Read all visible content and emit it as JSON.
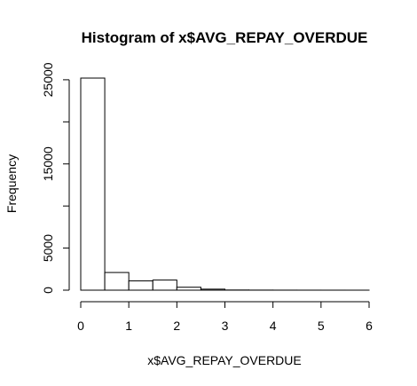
{
  "chart_data": {
    "type": "bar",
    "title": "Histogram of x$AVG_REPAY_OVERDUE",
    "xlabel": "x$AVG_REPAY_OVERDUE",
    "ylabel": "Frequency",
    "bins": [
      {
        "from": 0.0,
        "to": 0.5,
        "count": 25200
      },
      {
        "from": 0.5,
        "to": 1.0,
        "count": 2100
      },
      {
        "from": 1.0,
        "to": 1.5,
        "count": 1100
      },
      {
        "from": 1.5,
        "to": 2.0,
        "count": 1200
      },
      {
        "from": 2.0,
        "to": 2.5,
        "count": 350
      },
      {
        "from": 2.5,
        "to": 3.0,
        "count": 120
      },
      {
        "from": 3.0,
        "to": 3.5,
        "count": 20
      },
      {
        "from": 3.5,
        "to": 4.0,
        "count": 10
      },
      {
        "from": 4.0,
        "to": 4.5,
        "count": 5
      },
      {
        "from": 4.5,
        "to": 5.0,
        "count": 3
      },
      {
        "from": 5.0,
        "to": 5.5,
        "count": 2
      },
      {
        "from": 5.5,
        "to": 6.0,
        "count": 1
      }
    ],
    "xticks": [
      0,
      1,
      2,
      3,
      4,
      5,
      6
    ],
    "xtick_labels": [
      "0",
      "1",
      "2",
      "3",
      "4",
      "5",
      "6"
    ],
    "yticks": [
      0,
      5000,
      10000,
      15000,
      20000,
      25000
    ],
    "ytick_labels": [
      "0",
      "5000",
      "",
      "15000",
      "",
      "25000"
    ],
    "xlim": [
      0,
      6
    ],
    "ylim": [
      0,
      25200
    ],
    "grid": false,
    "bar_fill": "#ffffff",
    "bar_stroke": "#000000"
  }
}
